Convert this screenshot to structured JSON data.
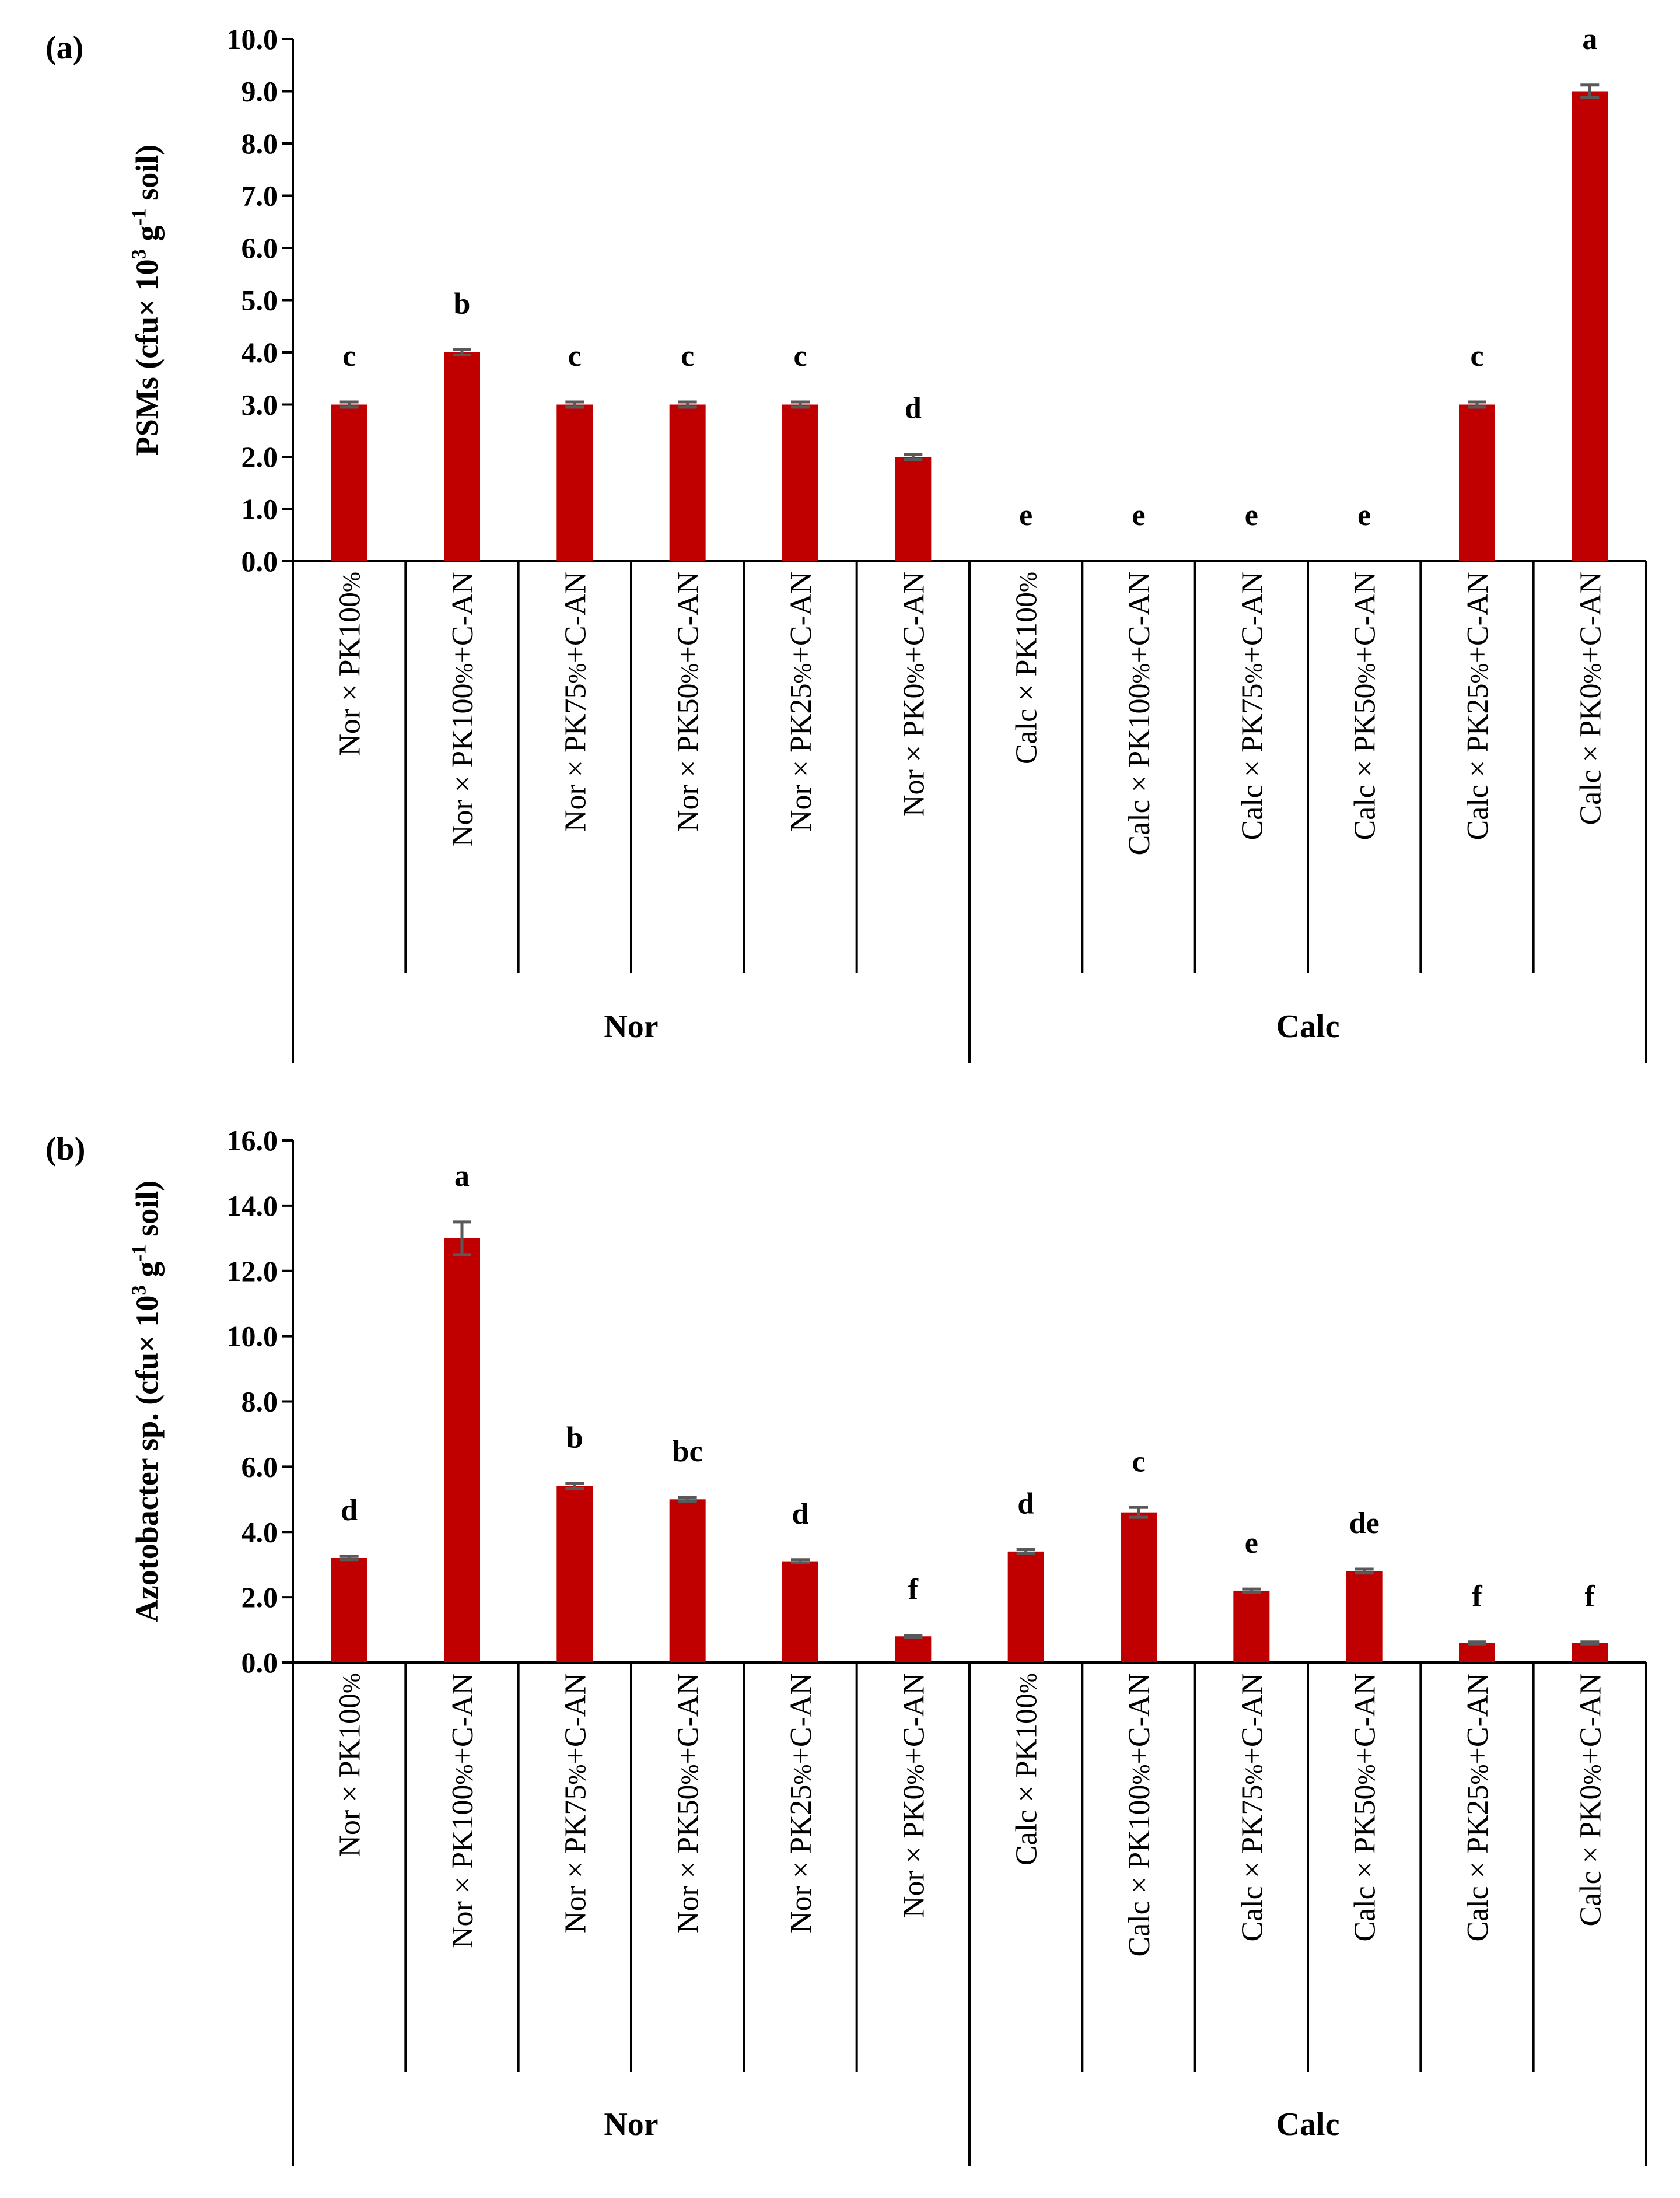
{
  "chart_data": [
    {
      "panel_label": "(a)",
      "type": "bar",
      "title": "",
      "xlabel": "",
      "ylabel": "PSMs (cfu× 10<sup>3</sup> g<sup>-1</sup> soil)",
      "ylim": [
        0,
        10
      ],
      "ytick_step": 1,
      "ytick_labels": [
        "0.0",
        "1.0",
        "2.0",
        "3.0",
        "4.0",
        "5.0",
        "6.0",
        "7.0",
        "8.0",
        "9.0",
        "10.0"
      ],
      "categories": [
        "Nor × PK100%",
        "Nor × PK100%+C-AN",
        "Nor × PK75%+C-AN",
        "Nor × PK50%+C-AN",
        "Nor × PK25%+C-AN",
        "Nor × PK0%+C-AN",
        "Calc × PK100%",
        "Calc × PK100%+C-AN",
        "Calc × PK75%+C-AN",
        "Calc × PK50%+C-AN",
        "Calc × PK25%+C-AN",
        "Calc × PK0%+C-AN"
      ],
      "values": [
        3.0,
        4.0,
        3.0,
        3.0,
        3.0,
        2.0,
        0,
        0,
        0,
        0,
        3.0,
        9.0
      ],
      "errors": [
        0.05,
        0.05,
        0.05,
        0.05,
        0.05,
        0.05,
        0,
        0,
        0,
        0,
        0.05,
        0.12
      ],
      "letters": [
        "c",
        "b",
        "c",
        "c",
        "c",
        "d",
        "e",
        "e",
        "e",
        "e",
        "c",
        "a"
      ],
      "groups": [
        {
          "name": "Nor",
          "start": 0,
          "end": 5
        },
        {
          "name": "Calc",
          "start": 6,
          "end": 11
        }
      ],
      "bar_color": "#C00000",
      "error_color": "#595959"
    },
    {
      "panel_label": "(b)",
      "type": "bar",
      "title": "",
      "xlabel": "",
      "ylabel": "Azotobacter sp. (cfu× 10<sup>3</sup> g<sup>-1</sup> soil)",
      "ylim": [
        0,
        16
      ],
      "ytick_step": 2,
      "ytick_labels": [
        "0.0",
        "2.0",
        "4.0",
        "6.0",
        "8.0",
        "10.0",
        "12.0",
        "14.0",
        "16.0"
      ],
      "categories": [
        "Nor × PK100%",
        "Nor × PK100%+C-AN",
        "Nor × PK75%+C-AN",
        "Nor × PK50%+C-AN",
        "Nor × PK25%+C-AN",
        "Nor × PK0%+C-AN",
        "Calc × PK100%",
        "Calc × PK100%+C-AN",
        "Calc × PK75%+C-AN",
        "Calc × PK50%+C-AN",
        "Calc × PK25%+C-AN",
        "Calc × PK0%+C-AN"
      ],
      "values": [
        3.2,
        13.0,
        5.4,
        5.0,
        3.1,
        0.8,
        3.4,
        4.6,
        2.2,
        2.8,
        0.6,
        0.6
      ],
      "errors": [
        0.05,
        0.5,
        0.08,
        0.06,
        0.05,
        0.03,
        0.06,
        0.15,
        0.05,
        0.06,
        0.03,
        0.03
      ],
      "letters": [
        "d",
        "a",
        "b",
        "bc",
        "d",
        "f",
        "d",
        "c",
        "e",
        "de",
        "f",
        "f"
      ],
      "groups": [
        {
          "name": "Nor",
          "start": 0,
          "end": 5
        },
        {
          "name": "Calc",
          "start": 6,
          "end": 11
        }
      ],
      "bar_color": "#C00000",
      "error_color": "#595959"
    }
  ]
}
